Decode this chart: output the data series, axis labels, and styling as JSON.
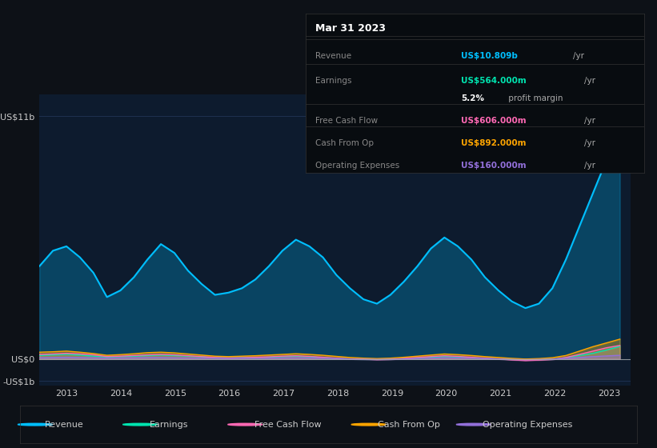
{
  "bg_color": "#0d1117",
  "plot_bg_color": "#0d1b2e",
  "grid_color": "#1e3050",
  "text_color": "#cccccc",
  "series_colors": {
    "Revenue": "#00bfff",
    "Earnings": "#00e5b0",
    "FreeCashFlow": "#ff69b4",
    "CashFromOp": "#ffa500",
    "OperatingExpenses": "#9370db"
  },
  "legend_labels": [
    "Revenue",
    "Earnings",
    "Free Cash Flow",
    "Cash From Op",
    "Operating Expenses"
  ],
  "legend_colors": [
    "#00bfff",
    "#00e5b0",
    "#ff69b4",
    "#ffa500",
    "#9370db"
  ],
  "info_box": {
    "date": "Mar 31 2023",
    "rows": [
      {
        "label": "Revenue",
        "value": "US$10.809b",
        "unit": "/yr",
        "value_color": "#00bfff"
      },
      {
        "label": "Earnings",
        "value": "US$564.000m",
        "unit": "/yr",
        "value_color": "#00e5b0"
      },
      {
        "label": "",
        "value": "5.2%",
        "unit": " profit margin",
        "value_color": "#ffffff"
      },
      {
        "label": "Free Cash Flow",
        "value": "US$606.000m",
        "unit": "/yr",
        "value_color": "#ff69b4"
      },
      {
        "label": "Cash From Op",
        "value": "US$892.000m",
        "unit": "/yr",
        "value_color": "#ffa500"
      },
      {
        "label": "Operating Expenses",
        "value": "US$160.000m",
        "unit": "/yr",
        "value_color": "#9370db"
      }
    ]
  },
  "revenue": [
    4200000000,
    4900000000,
    5100000000,
    4600000000,
    3900000000,
    2800000000,
    3100000000,
    3700000000,
    4500000000,
    5200000000,
    4800000000,
    4000000000,
    3400000000,
    2900000000,
    3000000000,
    3200000000,
    3600000000,
    4200000000,
    4900000000,
    5400000000,
    5100000000,
    4600000000,
    3800000000,
    3200000000,
    2700000000,
    2500000000,
    2900000000,
    3500000000,
    4200000000,
    5000000000,
    5500000000,
    5100000000,
    4500000000,
    3700000000,
    3100000000,
    2600000000,
    2300000000,
    2500000000,
    3200000000,
    4500000000,
    6000000000,
    7500000000,
    9000000000,
    10809000000
  ],
  "earnings": [
    150000000,
    180000000,
    200000000,
    170000000,
    120000000,
    80000000,
    100000000,
    120000000,
    150000000,
    170000000,
    150000000,
    120000000,
    90000000,
    50000000,
    40000000,
    50000000,
    60000000,
    70000000,
    100000000,
    120000000,
    90000000,
    50000000,
    20000000,
    -10000000,
    -20000000,
    -30000000,
    -20000000,
    10000000,
    40000000,
    70000000,
    100000000,
    80000000,
    50000000,
    20000000,
    -10000000,
    -30000000,
    -50000000,
    -40000000,
    -20000000,
    50000000,
    150000000,
    250000000,
    400000000,
    564000000
  ],
  "free_cash_flow": [
    200000000,
    220000000,
    250000000,
    220000000,
    180000000,
    100000000,
    120000000,
    150000000,
    180000000,
    200000000,
    180000000,
    140000000,
    100000000,
    60000000,
    40000000,
    50000000,
    70000000,
    90000000,
    120000000,
    140000000,
    110000000,
    70000000,
    30000000,
    -10000000,
    -20000000,
    -40000000,
    -30000000,
    20000000,
    60000000,
    100000000,
    140000000,
    110000000,
    70000000,
    30000000,
    -10000000,
    -50000000,
    -80000000,
    -60000000,
    -30000000,
    60000000,
    200000000,
    350000000,
    500000000,
    606000000
  ],
  "cash_from_op": [
    300000000,
    320000000,
    350000000,
    300000000,
    240000000,
    160000000,
    190000000,
    230000000,
    280000000,
    300000000,
    270000000,
    220000000,
    170000000,
    120000000,
    100000000,
    120000000,
    140000000,
    170000000,
    200000000,
    230000000,
    200000000,
    160000000,
    110000000,
    60000000,
    30000000,
    10000000,
    30000000,
    70000000,
    120000000,
    170000000,
    220000000,
    190000000,
    150000000,
    100000000,
    60000000,
    20000000,
    -10000000,
    10000000,
    50000000,
    150000000,
    350000000,
    550000000,
    720000000,
    892000000
  ],
  "operating_expenses": [
    50000000,
    60000000,
    70000000,
    60000000,
    50000000,
    30000000,
    40000000,
    50000000,
    60000000,
    60000000,
    50000000,
    40000000,
    30000000,
    20000000,
    10000000,
    20000000,
    20000000,
    30000000,
    40000000,
    50000000,
    40000000,
    30000000,
    10000000,
    -10000000,
    -20000000,
    -30000000,
    -20000000,
    -10000000,
    10000000,
    30000000,
    50000000,
    40000000,
    30000000,
    10000000,
    -10000000,
    -30000000,
    -40000000,
    -30000000,
    -20000000,
    20000000,
    60000000,
    100000000,
    130000000,
    160000000
  ]
}
